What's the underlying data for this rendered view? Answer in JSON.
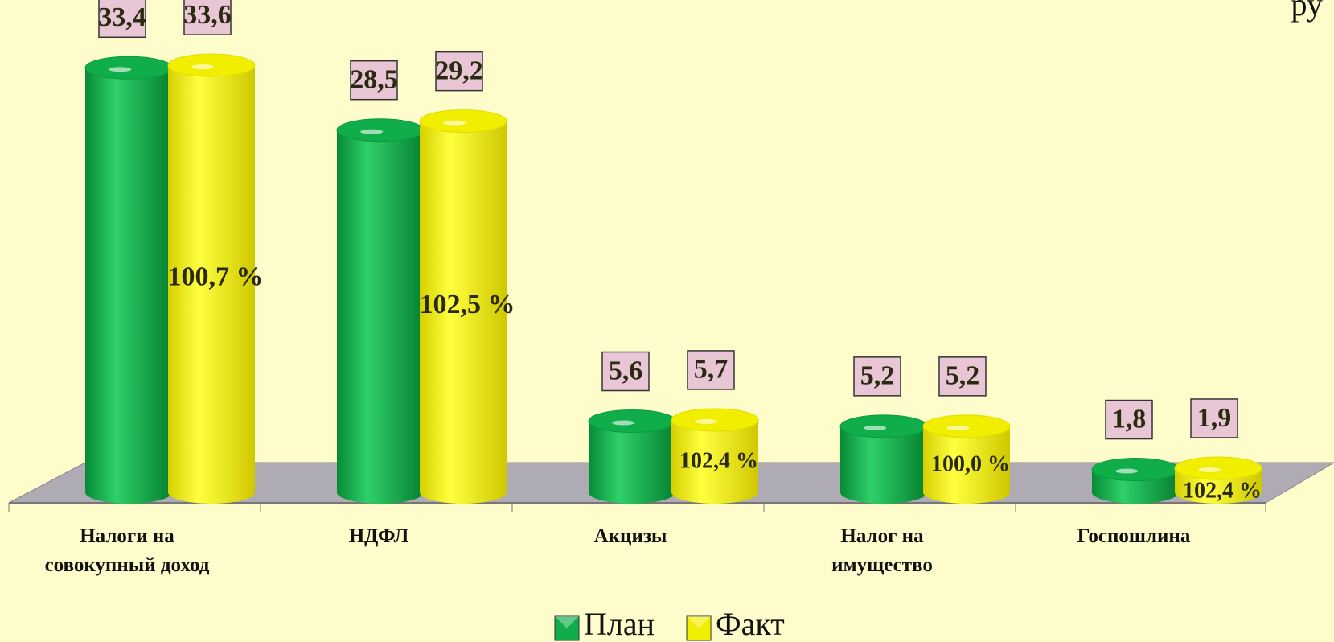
{
  "chart_data": {
    "type": "bar3d",
    "annotation": "ру",
    "categories": [
      [
        "Налоги на",
        "совокупный доход"
      ],
      [
        "НДФЛ"
      ],
      [
        "Акцизы"
      ],
      [
        "Налог на",
        "имущество"
      ],
      [
        "Госпошлина"
      ]
    ],
    "series": [
      {
        "name": "План",
        "color": "#0fae4a",
        "values": [
          33.4,
          28.5,
          5.6,
          5.2,
          1.8
        ],
        "value_labels": [
          "33,4",
          "28,5",
          "5,6",
          "5,2",
          "1,8"
        ]
      },
      {
        "name": "Факт",
        "color": "#f2ee00",
        "values": [
          33.6,
          29.2,
          5.7,
          5.2,
          1.9
        ],
        "value_labels": [
          "33,6",
          "29,2",
          "5,7",
          "5,2",
          "1,9"
        ]
      }
    ],
    "completion_labels": [
      "100,7 %",
      "102,5 %",
      "102,4 %",
      "100,0 %",
      "102,4 %"
    ]
  }
}
